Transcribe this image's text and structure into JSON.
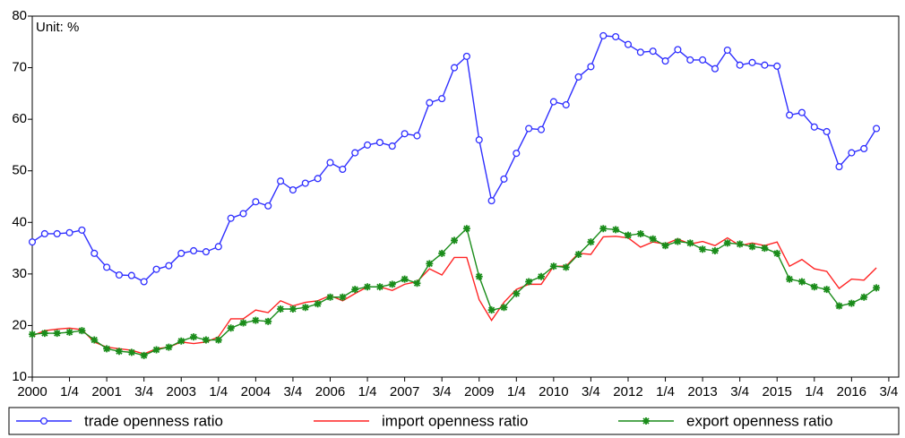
{
  "chart_data": {
    "type": "line",
    "annotation": "Unit: %",
    "categories": [
      "2000",
      null,
      null,
      "1/4",
      null,
      null,
      "2001",
      null,
      null,
      "3/4",
      null,
      null,
      "2003",
      null,
      null,
      "1/4",
      null,
      null,
      "2004",
      null,
      null,
      "3/4",
      null,
      null,
      "2006",
      null,
      null,
      "1/4",
      null,
      null,
      "2007",
      null,
      null,
      "3/4",
      null,
      null,
      "2009",
      null,
      null,
      "1/4",
      null,
      null,
      "2010",
      null,
      null,
      "3/4",
      null,
      null,
      "2012",
      null,
      null,
      "1/4",
      null,
      null,
      "2013",
      null,
      null,
      "3/4",
      null,
      null,
      "2015",
      null,
      null,
      "1/4",
      null,
      null,
      "2016",
      null,
      null,
      "3/4"
    ],
    "series": [
      {
        "name": "trade openness ratio",
        "color": "#2f2fff",
        "marker": "circle",
        "values": [
          36.2,
          37.8,
          37.8,
          38.0,
          38.5,
          34.0,
          31.3,
          29.8,
          29.7,
          28.5,
          30.9,
          31.6,
          34.0,
          34.5,
          34.3,
          35.3,
          40.8,
          41.7,
          44.0,
          43.2,
          48.0,
          46.3,
          47.6,
          48.5,
          51.6,
          50.3,
          53.5,
          55.0,
          55.5,
          54.8,
          57.2,
          56.8,
          63.2,
          64.0,
          70.0,
          72.2,
          56.0,
          44.2,
          48.4,
          53.4,
          58.2,
          58.0,
          63.4,
          62.8,
          68.2,
          70.2,
          76.2,
          76.0,
          74.5,
          73.0,
          73.2,
          71.3,
          73.5,
          71.5,
          71.5,
          69.8,
          73.4,
          70.5,
          71.0,
          70.5,
          70.3,
          60.8,
          61.3,
          58.5,
          57.6,
          50.8,
          53.5,
          54.3,
          58.2,
          null
        ]
      },
      {
        "name": "import openness ratio",
        "color": "#ff2424",
        "marker": "none",
        "values": [
          18.0,
          19.0,
          19.3,
          19.5,
          19.2,
          16.8,
          15.8,
          15.5,
          15.2,
          14.5,
          15.5,
          15.8,
          16.8,
          16.5,
          16.8,
          17.8,
          21.3,
          21.3,
          23.0,
          22.5,
          24.8,
          23.8,
          24.5,
          24.8,
          25.8,
          24.8,
          26.2,
          27.5,
          27.5,
          26.8,
          28.0,
          28.5,
          31.0,
          29.8,
          33.2,
          33.2,
          25.0,
          21.0,
          24.5,
          27.0,
          28.0,
          28.0,
          31.5,
          31.5,
          34.0,
          33.8,
          37.2,
          37.3,
          37.0,
          35.2,
          36.2,
          35.8,
          36.8,
          35.8,
          36.3,
          35.5,
          37.0,
          35.5,
          36.0,
          35.5,
          36.2,
          31.5,
          32.8,
          31.0,
          30.5,
          27.2,
          29.0,
          28.8,
          31.2,
          null
        ]
      },
      {
        "name": "export openness ratio",
        "color": "#1a8c1a",
        "marker": "star",
        "values": [
          18.3,
          18.5,
          18.5,
          18.7,
          19.0,
          17.2,
          15.5,
          15.0,
          14.8,
          14.2,
          15.3,
          15.8,
          17.0,
          17.8,
          17.2,
          17.2,
          19.5,
          20.5,
          21.0,
          20.8,
          23.2,
          23.2,
          23.5,
          24.2,
          25.5,
          25.5,
          27.0,
          27.5,
          27.5,
          28.0,
          29.0,
          28.2,
          32.0,
          34.0,
          36.5,
          38.8,
          29.5,
          23.0,
          23.5,
          26.2,
          28.5,
          29.5,
          31.5,
          31.3,
          33.8,
          36.2,
          38.8,
          38.6,
          37.5,
          37.8,
          36.8,
          35.5,
          36.3,
          36.0,
          34.8,
          34.5,
          36.0,
          35.8,
          35.3,
          35.0,
          34.0,
          29.0,
          28.5,
          27.5,
          27.0,
          23.8,
          24.3,
          25.5,
          27.3,
          null
        ]
      }
    ],
    "ylim": [
      10,
      80
    ],
    "yticks": [
      10,
      20,
      30,
      40,
      50,
      60,
      70,
      80
    ],
    "grid": false,
    "legend": "bottom"
  }
}
